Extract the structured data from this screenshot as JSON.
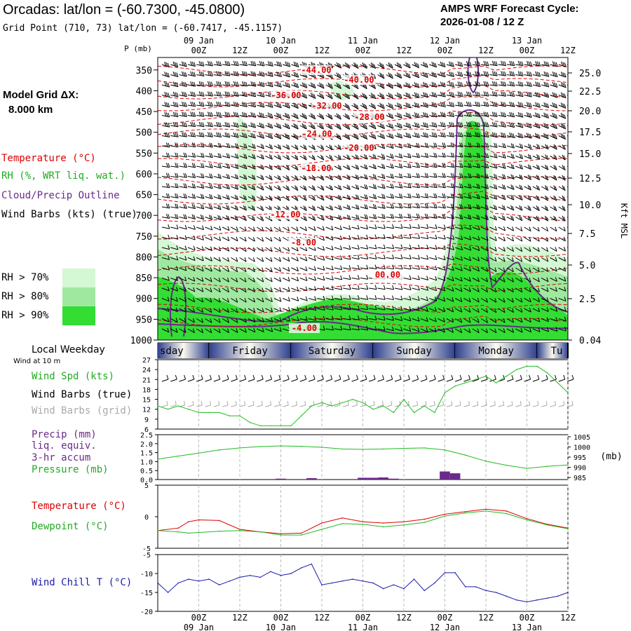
{
  "header": {
    "title": "Orcadas:  lat/lon = (-60.7300, -45.0800)",
    "grid_point": "Grid Point (710, 73) lat/lon = (-60.7417, -45.1157)",
    "cycle_line1": "AMPS WRF Forecast Cycle:",
    "cycle_line2": "2026-01-08 / 12  Z",
    "model_grid_line1": "Model Grid ΔX:",
    "model_grid_line2": "8.000 km"
  },
  "legend": {
    "temperature": "Temperature (°C)",
    "rh": "RH (%, WRT liq. wat.)",
    "cloud": "Cloud/Precip Outline",
    "wind": "Wind Barbs (kts) (true)",
    "rh70": "RH > 70%",
    "rh80": "RH > 80%",
    "rh90": "RH > 90%"
  },
  "colors": {
    "temperature": "#dd0000",
    "rh_label": "#22aa22",
    "cloud": "#6a2a8a",
    "rh70": "#d4f7d4",
    "rh80": "#9fe89f",
    "rh90": "#33dd33",
    "wind_speed": "#22bb22",
    "pressure": "#22bb22",
    "precip": "#6a2a8a",
    "windchill": "#1a1aaa",
    "grid_barbs": "#aaaaaa"
  },
  "time_axis": {
    "top_hour_labels": [
      "00Z",
      "12Z",
      "00Z",
      "12Z",
      "00Z",
      "12Z",
      "00Z",
      "12Z",
      "00Z",
      "12Z"
    ],
    "top_date_labels": [
      "09 Jan",
      "10 Jan",
      "11 Jan",
      "12 Jan",
      "13 Jan"
    ],
    "bottom_hour_labels": [
      "00Z",
      "12Z",
      "00Z",
      "12Z",
      "00Z",
      "12Z",
      "00Z",
      "12Z",
      "00Z",
      "12Z"
    ],
    "bottom_date_labels": [
      "09 Jan",
      "10 Jan",
      "11 Jan",
      "12 Jan",
      "13 Jan"
    ],
    "pressure_label": "P (mb)",
    "start_hour_offset": -12
  },
  "weekdays": {
    "title": "Local Weekday",
    "labels": [
      "sday",
      "Friday",
      "Saturday",
      "Sunday",
      "Monday",
      "Tu"
    ]
  },
  "chart_data": [
    {
      "type": "contour",
      "name": "cross-section",
      "y_axis_label": "P (mb)",
      "pressure_ticks": [
        "350",
        "400",
        "450",
        "500",
        "550",
        "600",
        "650",
        "700",
        "750",
        "800",
        "850",
        "900",
        "950",
        "1000"
      ],
      "height_axis_label": "Kft MSL",
      "height_ticks": [
        "25.0",
        "22.5",
        "20.0",
        "17.5",
        "15.0",
        "12.5",
        "10.0",
        "7.5",
        "5.0",
        "2.5",
        "0.04"
      ],
      "temperature_labels": [
        "-44.00",
        "-40.00",
        "-36.00",
        "-32.00",
        "-28.00",
        "-24.00",
        "-20.00",
        "-18.00",
        "-12.00",
        "-8.00",
        "00.00",
        "-4.00"
      ]
    },
    {
      "type": "line",
      "name": "wind",
      "label_heading": "Wind at 10 m",
      "series_labels": [
        "Wind Spd (kts)",
        "Wind Barbs (true)",
        "Wind Barbs (grid)"
      ],
      "y_ticks": [
        "27",
        "24",
        "21",
        "18",
        "15",
        "12",
        "9",
        "6"
      ],
      "ylim": [
        6,
        27
      ],
      "x_hours": [
        -12,
        -9,
        -6,
        -3,
        0,
        3,
        6,
        9,
        12,
        15,
        18,
        21,
        24,
        27,
        30,
        33,
        36,
        39,
        42,
        45,
        48,
        51,
        54,
        57,
        60,
        63,
        66,
        69,
        72,
        75,
        78,
        81,
        84,
        87,
        90,
        93,
        96,
        99,
        102,
        105,
        108
      ],
      "values": [
        13,
        12,
        13,
        12,
        11,
        11,
        11,
        10,
        10,
        8,
        7,
        7,
        7,
        7,
        10,
        13,
        14,
        13,
        14,
        15,
        14,
        12,
        13,
        11,
        15,
        11,
        13,
        11,
        17,
        19,
        20,
        21,
        22,
        20,
        22,
        24,
        25,
        25,
        23,
        20,
        17
      ]
    },
    {
      "type": "bar+line",
      "name": "precip-pressure",
      "series_labels": [
        "Precip (mm)",
        "liq. equiv.",
        "3-hr accum",
        "Pressure (mb)"
      ],
      "precip_ticks": [
        "2.5",
        "2.0",
        "1.5",
        "1.0",
        "0.5",
        "0.0"
      ],
      "precip_ylim": [
        0,
        2.5
      ],
      "pressure_unit": "(mb)",
      "pressure_ticks": [
        "1005",
        "1000",
        "995",
        "990",
        "985"
      ],
      "pressure_ylim": [
        984,
        1006
      ],
      "precip_hours": [
        24,
        33,
        48,
        51,
        54,
        57,
        72,
        75
      ],
      "precip_values": [
        0.05,
        0.08,
        0.1,
        0.1,
        0.12,
        0.05,
        0.45,
        0.35
      ],
      "pressure_hours": [
        -12,
        -6,
        0,
        6,
        12,
        18,
        24,
        30,
        36,
        42,
        48,
        54,
        60,
        66,
        72,
        78,
        84,
        90,
        96,
        102,
        108
      ],
      "pressure_values": [
        994,
        995.5,
        997,
        998.5,
        999.5,
        1000.2,
        1000.5,
        1000.3,
        999.8,
        999,
        998.8,
        999,
        999.3,
        999.5,
        998.5,
        996,
        993,
        991,
        989.5,
        990.5,
        991.2
      ]
    },
    {
      "type": "line",
      "name": "temperature-dewpoint",
      "series_labels": [
        "Temperature (°C)",
        "Dewpoint (°C)"
      ],
      "y_ticks": [
        "5",
        "0",
        "-5"
      ],
      "ylim": [
        -5,
        5
      ],
      "x_hours": [
        -12,
        -6,
        -3,
        0,
        6,
        12,
        18,
        24,
        30,
        36,
        42,
        48,
        54,
        60,
        66,
        72,
        78,
        84,
        90,
        96,
        102,
        108
      ],
      "temperature": [
        -2.2,
        -1.8,
        -0.8,
        -0.5,
        -0.6,
        -2.0,
        -2.4,
        -2.7,
        -2.6,
        -1.0,
        -0.2,
        -0.8,
        -1.0,
        -0.8,
        -0.4,
        0.4,
        0.8,
        1.2,
        0.9,
        -0.3,
        -1.2,
        -1.8
      ],
      "dewpoint": [
        -2.2,
        -2.4,
        -2.6,
        -2.5,
        -2.3,
        -2.2,
        -2.4,
        -2.9,
        -2.9,
        -2.0,
        -1.1,
        -1.2,
        -1.6,
        -1.3,
        -0.9,
        0.1,
        0.6,
        0.9,
        0.5,
        -0.5,
        -1.3,
        -1.9
      ]
    },
    {
      "type": "line",
      "name": "wind-chill",
      "series_labels": [
        "Wind Chill T (°C)"
      ],
      "y_ticks": [
        "-5",
        "-10",
        "-15",
        "-20"
      ],
      "ylim": [
        -20,
        -5
      ],
      "x_hours": [
        -12,
        -9,
        -6,
        -3,
        0,
        3,
        6,
        9,
        12,
        15,
        18,
        21,
        24,
        27,
        30,
        33,
        36,
        39,
        42,
        45,
        48,
        51,
        54,
        57,
        60,
        63,
        66,
        69,
        72,
        75,
        78,
        81,
        84,
        87,
        90,
        93,
        96,
        99,
        102,
        105,
        108
      ],
      "values": [
        -12.5,
        -15,
        -12.5,
        -11.5,
        -12,
        -11.5,
        -13,
        -12,
        -11,
        -10.5,
        -11,
        -9.5,
        -10.5,
        -10,
        -8.5,
        -7.5,
        -13,
        -12.5,
        -12,
        -11.5,
        -12,
        -12.5,
        -14,
        -13,
        -14,
        -11.5,
        -14.5,
        -12.5,
        -9.8,
        -9.8,
        -13.5,
        -13.5,
        -14.5,
        -15,
        -16,
        -17,
        -17.5,
        -17,
        -16.5,
        -16,
        -15
      ]
    }
  ]
}
